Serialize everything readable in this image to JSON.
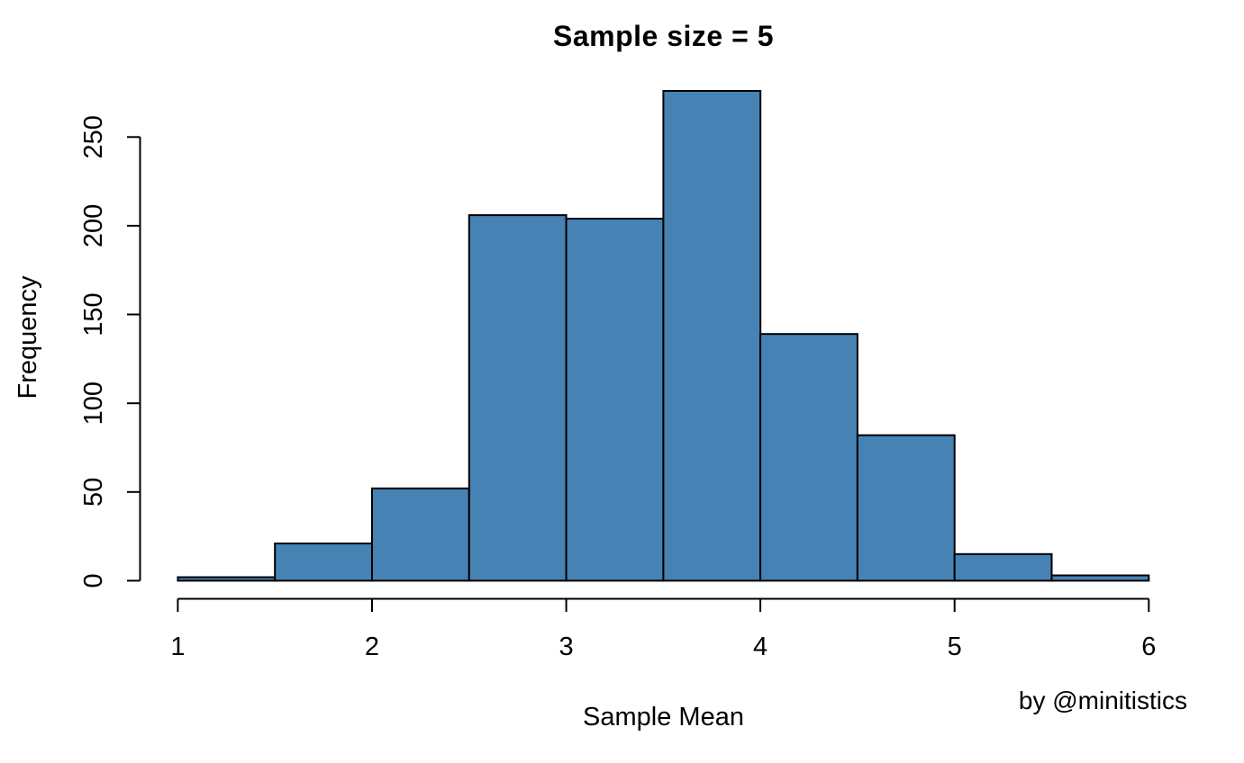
{
  "chart_data": {
    "type": "bar",
    "subtype": "histogram",
    "title": "Sample size = 5",
    "xlabel": "Sample Mean",
    "ylabel": "Frequency",
    "attribution": "by @minitistics",
    "bin_edges": [
      1,
      1.5,
      2,
      2.5,
      3,
      3.5,
      4,
      4.5,
      5,
      5.5,
      6
    ],
    "frequencies": [
      2,
      21,
      52,
      206,
      204,
      276,
      139,
      82,
      15,
      3
    ],
    "x_ticks": [
      1,
      2,
      3,
      4,
      5,
      6
    ],
    "y_ticks": [
      0,
      50,
      100,
      150,
      200,
      250
    ],
    "xlim": [
      0.8,
      6.2
    ],
    "ylim": [
      0,
      276
    ],
    "grid": false,
    "legend": "none",
    "bar_fill_color": "#4682B4",
    "bar_border_color": "#000000",
    "axis_color": "#000000",
    "text_color": "#000000",
    "background_color": "#FFFFFF"
  }
}
